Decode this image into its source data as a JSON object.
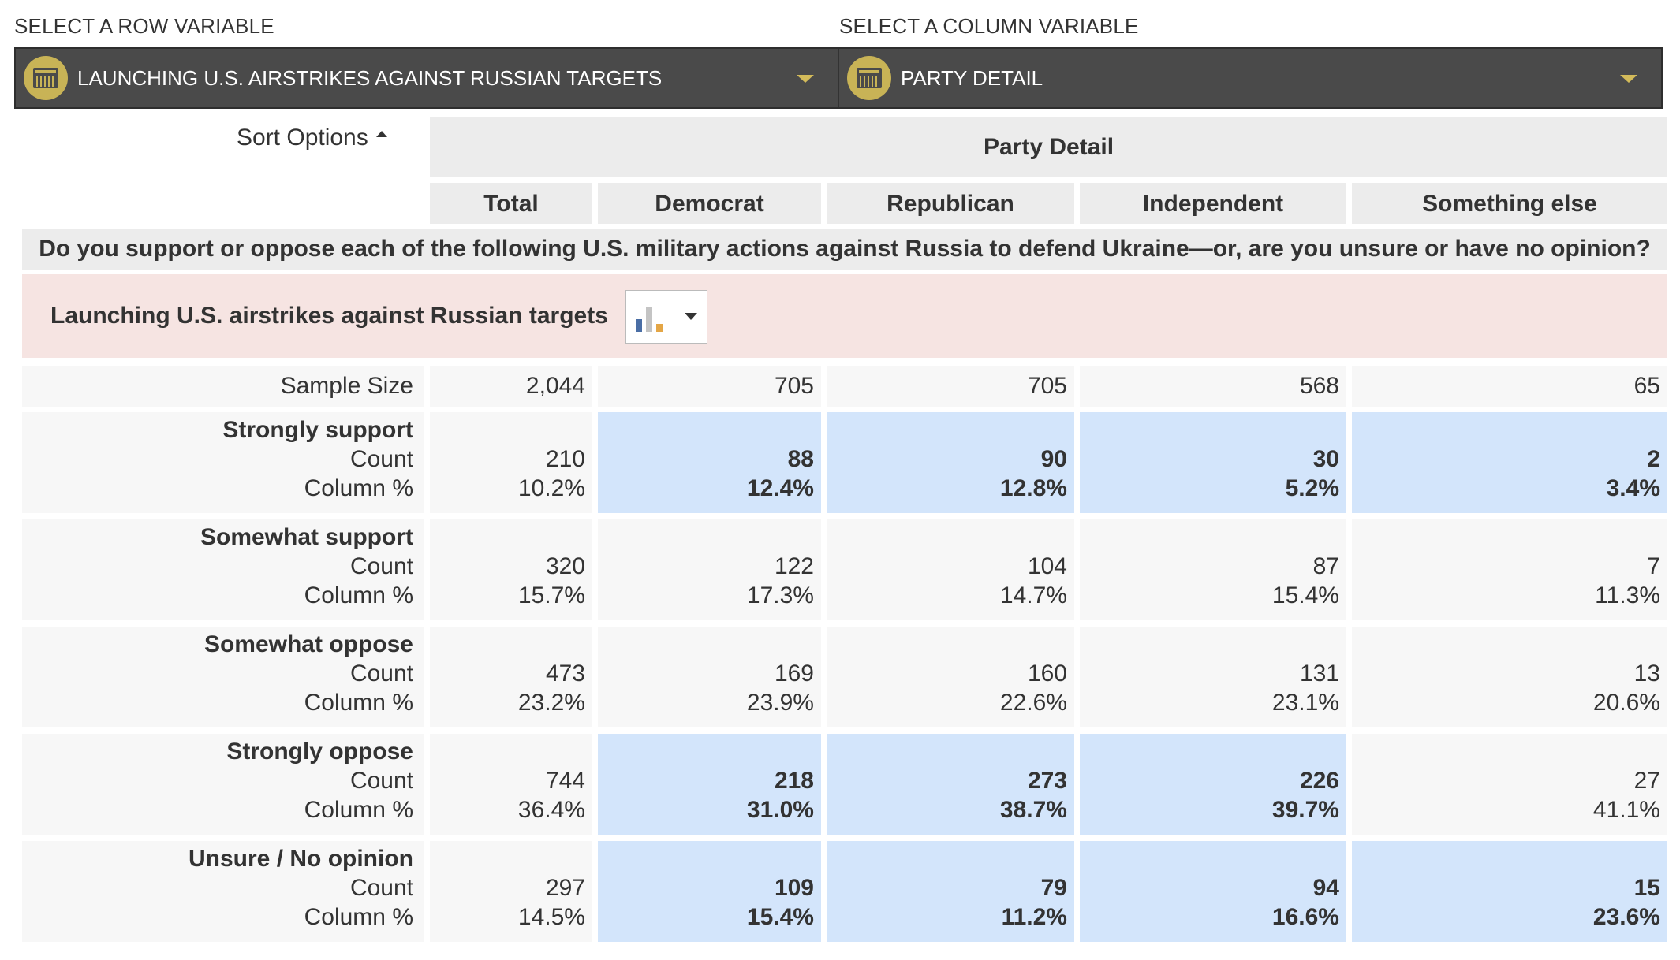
{
  "row_selector": {
    "label": "SELECT A ROW VARIABLE",
    "value": "LAUNCHING U.S. AIRSTRIKES AGAINST RUSSIAN TARGETS"
  },
  "column_selector": {
    "label": "SELECT A COLUMN VARIABLE",
    "value": "PARTY DETAIL"
  },
  "sort_options_label": "Sort Options",
  "column_group_title": "Party Detail",
  "columns": [
    "Total",
    "Democrat",
    "Republican",
    "Independent",
    "Something else"
  ],
  "question": "Do you support or oppose each of the following U.S. military actions against Russia to defend Ukraine—or, are you unsure or have no opinion?",
  "variable_title": "Launching U.S. airstrikes against Russian targets",
  "sample_size": {
    "label": "Sample Size",
    "values": [
      "2,044",
      "705",
      "705",
      "568",
      "65"
    ]
  },
  "count_label": "Count",
  "pct_label": "Column %",
  "rows": [
    {
      "label": "Strongly support",
      "counts": [
        "210",
        "88",
        "90",
        "30",
        "2"
      ],
      "pcts": [
        "10.2%",
        "12.4%",
        "12.8%",
        "5.2%",
        "3.4%"
      ],
      "highlight": [
        false,
        true,
        true,
        true,
        true
      ]
    },
    {
      "label": "Somewhat support",
      "counts": [
        "320",
        "122",
        "104",
        "87",
        "7"
      ],
      "pcts": [
        "15.7%",
        "17.3%",
        "14.7%",
        "15.4%",
        "11.3%"
      ],
      "highlight": [
        false,
        false,
        false,
        false,
        false
      ]
    },
    {
      "label": "Somewhat oppose",
      "counts": [
        "473",
        "169",
        "160",
        "131",
        "13"
      ],
      "pcts": [
        "23.2%",
        "23.9%",
        "22.6%",
        "23.1%",
        "20.6%"
      ],
      "highlight": [
        false,
        false,
        false,
        false,
        false
      ]
    },
    {
      "label": "Strongly oppose",
      "counts": [
        "744",
        "218",
        "273",
        "226",
        "27"
      ],
      "pcts": [
        "36.4%",
        "31.0%",
        "38.7%",
        "39.7%",
        "41.1%"
      ],
      "highlight": [
        false,
        true,
        true,
        true,
        false
      ]
    },
    {
      "label": "Unsure / No opinion",
      "counts": [
        "297",
        "109",
        "79",
        "94",
        "15"
      ],
      "pcts": [
        "14.5%",
        "15.4%",
        "11.2%",
        "16.6%",
        "23.6%"
      ],
      "highlight": [
        false,
        true,
        true,
        true,
        true
      ]
    }
  ],
  "colors": {
    "selector_bg": "#4a4a4a",
    "badge": "#c8b356",
    "highlight_cell": "#d3e5fb",
    "variable_row_bg": "#f6e4e2"
  },
  "icons": {
    "selector_badge": "table-icon",
    "chart_button": "bar-chart-icon"
  }
}
